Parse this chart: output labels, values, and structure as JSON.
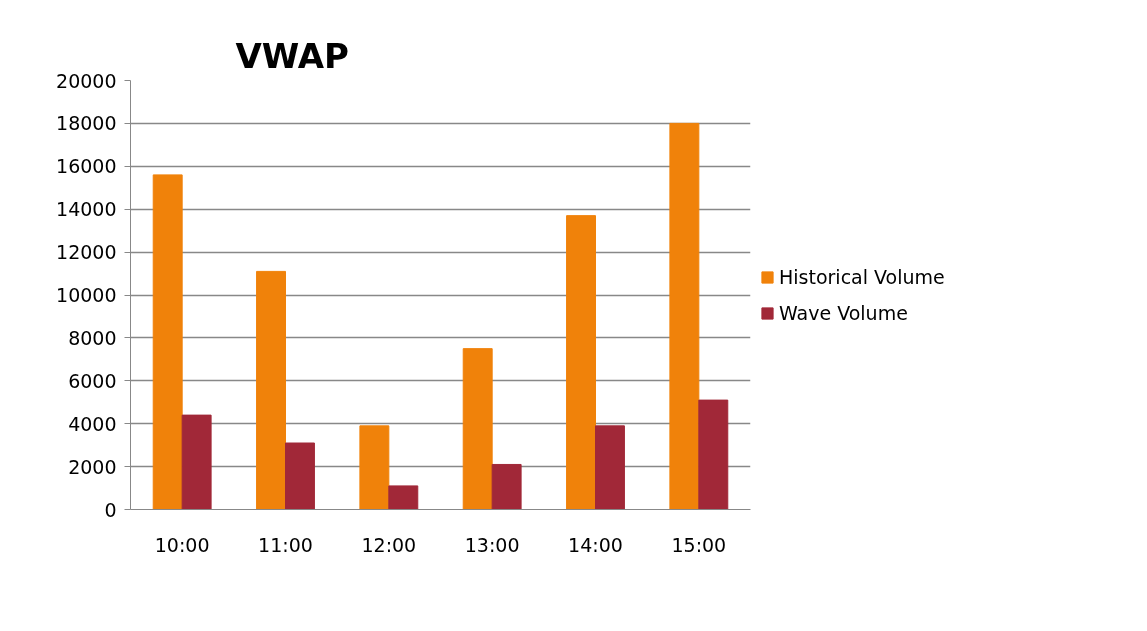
{
  "chart_data": {
    "type": "bar",
    "title": "VWAP",
    "categories": [
      "10:00",
      "11:00",
      "12:00",
      "13:00",
      "14:00",
      "15:00"
    ],
    "series": [
      {
        "name": "Historical Volume",
        "color": "#f0820a",
        "values": [
          15600,
          11100,
          3900,
          7500,
          13700,
          18000
        ]
      },
      {
        "name": "Wave Volume",
        "color": "#a12838",
        "values": [
          4400,
          3100,
          1100,
          2100,
          3900,
          5100
        ]
      }
    ],
    "ylim": [
      0,
      20000
    ],
    "yticks": [
      0,
      2000,
      4000,
      6000,
      8000,
      10000,
      12000,
      14000,
      16000,
      18000,
      20000
    ],
    "grid": "y",
    "legend": "right"
  }
}
